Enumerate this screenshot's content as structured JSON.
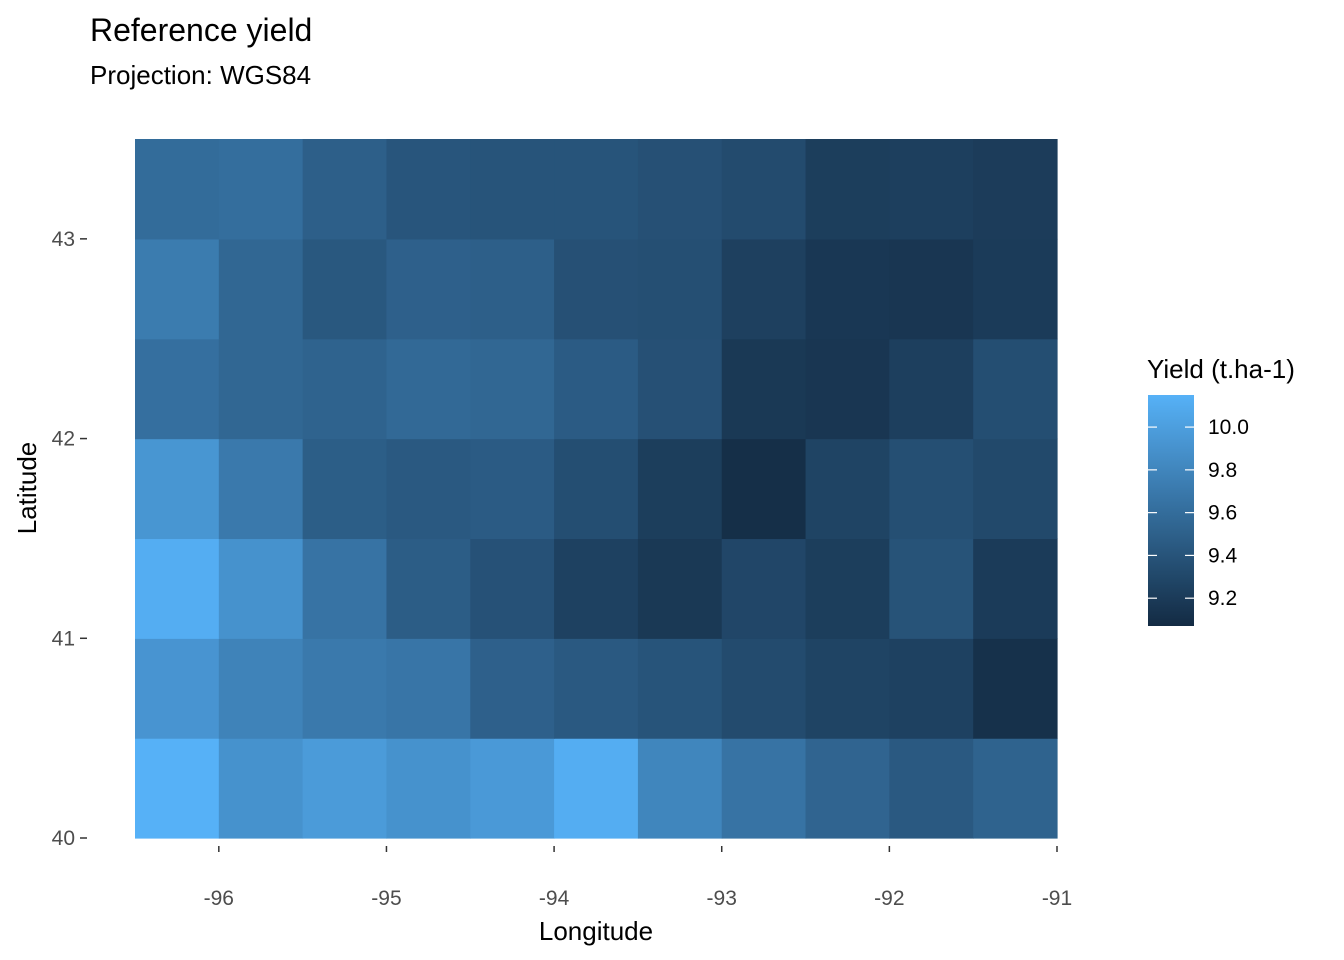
{
  "chart_data": {
    "type": "heatmap",
    "title": "Reference yield",
    "subtitle": "Projection: WGS84",
    "xlabel": "Longitude",
    "ylabel": "Latitude",
    "x": [
      -96.25,
      -95.75,
      -95.25,
      -94.75,
      -94.25,
      -93.75,
      -93.25,
      -92.75,
      -92.25,
      -91.75,
      -91.25
    ],
    "y": [
      40.25,
      40.75,
      41.25,
      41.75,
      42.25,
      42.75,
      43.25
    ],
    "xlim": [
      -96.5,
      -91.0
    ],
    "ylim": [
      40.0,
      43.5
    ],
    "x_ticks": [
      -96,
      -95,
      -94,
      -93,
      -92,
      -91
    ],
    "x_tick_labels": [
      "-96",
      "-95",
      "-94",
      "-93",
      "-92",
      "-91"
    ],
    "y_ticks": [
      40,
      41,
      42,
      43
    ],
    "y_tick_labels": [
      "40",
      "41",
      "42",
      "43"
    ],
    "values": [
      [
        10.15,
        9.9,
        9.97,
        9.9,
        9.96,
        10.12,
        9.8,
        9.65,
        9.53,
        9.44,
        9.52
      ],
      [
        9.92,
        9.78,
        9.7,
        9.67,
        9.5,
        9.44,
        9.4,
        9.33,
        9.27,
        9.25,
        9.12
      ],
      [
        10.12,
        9.9,
        9.65,
        9.47,
        9.38,
        9.25,
        9.18,
        9.29,
        9.22,
        9.39,
        9.2
      ],
      [
        9.93,
        9.7,
        9.48,
        9.44,
        9.46,
        9.35,
        9.22,
        9.1,
        9.27,
        9.36,
        9.31
      ],
      [
        9.62,
        9.55,
        9.52,
        9.57,
        9.55,
        9.46,
        9.37,
        9.18,
        9.16,
        9.23,
        9.35
      ],
      [
        9.72,
        9.55,
        9.43,
        9.5,
        9.49,
        9.37,
        9.36,
        9.24,
        9.17,
        9.16,
        9.2
      ],
      [
        9.59,
        9.61,
        9.49,
        9.41,
        9.4,
        9.4,
        9.37,
        9.33,
        9.22,
        9.23,
        9.21
      ]
    ],
    "legend": {
      "title": "Yield (t.ha-1)",
      "min": 9.07,
      "max": 10.15,
      "ticks": [
        9.2,
        9.4,
        9.6,
        9.8,
        10.0
      ],
      "tick_labels": [
        "9.2",
        "9.4",
        "9.6",
        "9.8",
        "10.0"
      ],
      "low_color": "#132B43",
      "high_color": "#56B1F7",
      "placement": "right"
    },
    "grid": false
  }
}
